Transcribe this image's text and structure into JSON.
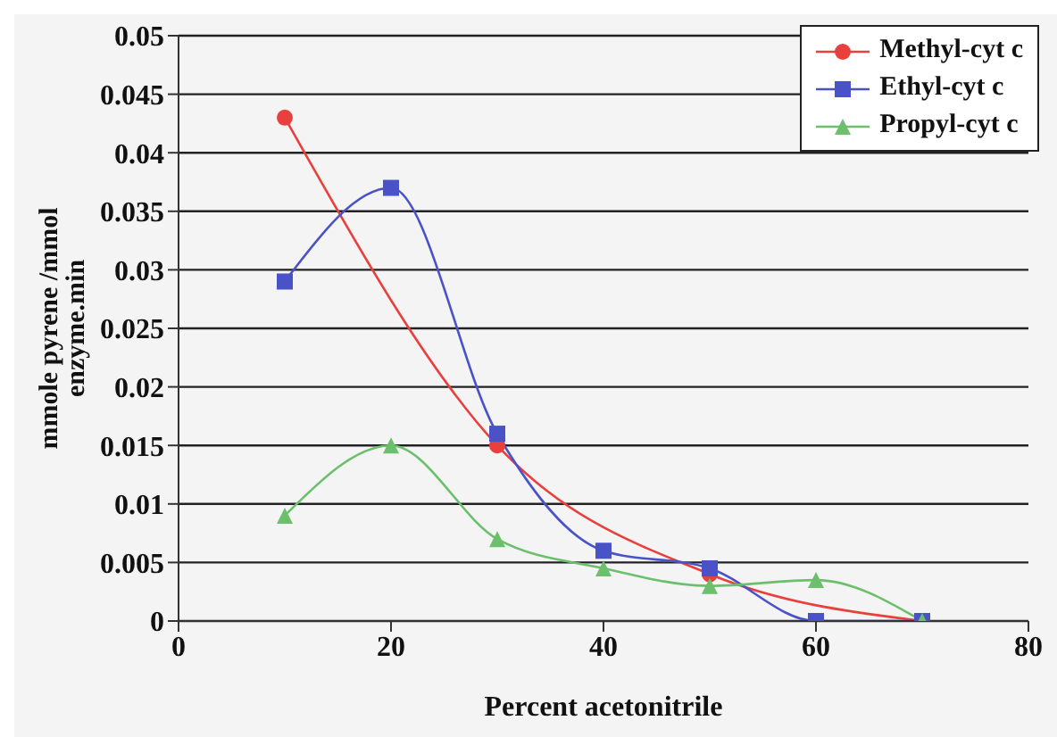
{
  "chart_data": {
    "type": "line",
    "xlabel": "Percent acetonitrile",
    "ylabel": "mmole pyrene /mmol enzyme.min",
    "xlim": [
      0,
      80
    ],
    "xticks": [
      0,
      20,
      40,
      60,
      80
    ],
    "ylim": [
      0,
      0.05
    ],
    "yticks": [
      0,
      0.005,
      0.01,
      0.015,
      0.02,
      0.025,
      0.03,
      0.035,
      0.04,
      0.045,
      0.05
    ],
    "grid": "y",
    "legend": "top right",
    "series": [
      {
        "name": "Methyl-cyt c",
        "color": "#e8403c",
        "marker": "circle",
        "x": [
          10,
          30,
          50,
          70
        ],
        "values": [
          0.043,
          0.015,
          0.004,
          0
        ]
      },
      {
        "name": "Ethyl-cyt c",
        "color": "#4a52c8",
        "marker": "square",
        "x": [
          10,
          20,
          30,
          40,
          50,
          60,
          70
        ],
        "values": [
          0.029,
          0.037,
          0.016,
          0.006,
          0.0045,
          0,
          0
        ]
      },
      {
        "name": "Propyl-cyt c",
        "color": "#6cbf6c",
        "marker": "triangle",
        "x": [
          10,
          20,
          30,
          40,
          50,
          60,
          70
        ],
        "values": [
          0.009,
          0.015,
          0.007,
          0.0045,
          0.003,
          0.0035,
          0
        ]
      }
    ]
  }
}
